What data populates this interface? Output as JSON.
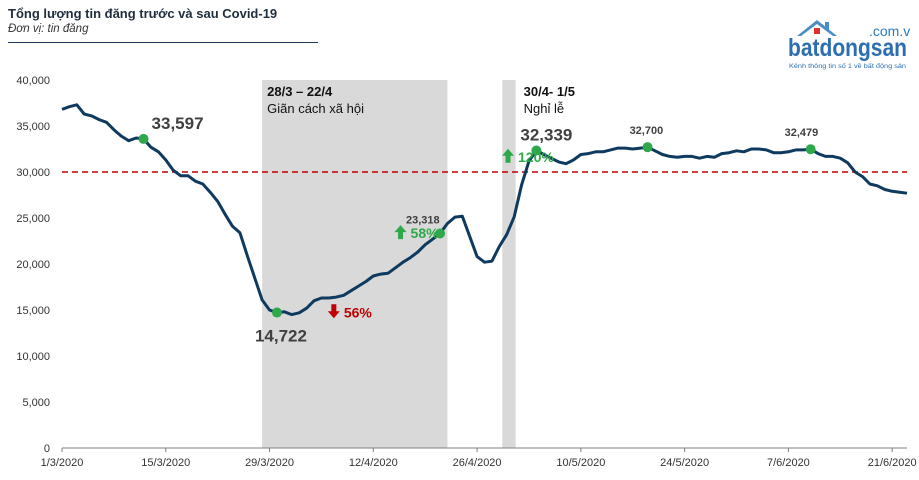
{
  "header": {
    "title": "Tổng lượng tin đăng trước và sau Covid-19",
    "subtitle": "Đơn vị: tin đăng"
  },
  "logo": {
    "brand": "batdongsan",
    "domain": ".com.vn",
    "tagline": "Kênh thông tin số 1 về bất động sản"
  },
  "colors": {
    "line": "#0e3a5f",
    "marker": "#2ea84a",
    "reference": "#c00000",
    "shade": "#d9d9d9",
    "up": "#2ea84a",
    "down": "#c00000"
  },
  "chart_data": {
    "type": "line",
    "title": "Tổng lượng tin đăng trước và sau Covid-19",
    "ylabel": "Đơn vị: tin đăng",
    "ylim": [
      0,
      40000
    ],
    "xlim": [
      0,
      114
    ],
    "y_ticks": [
      "0",
      "5,000",
      "10,000",
      "15,000",
      "20,000",
      "25,000",
      "30,000",
      "35,000",
      "40,000"
    ],
    "x_ticks": [
      {
        "day": 0,
        "label": "1/3/2020"
      },
      {
        "day": 14,
        "label": "15/3/2020"
      },
      {
        "day": 28,
        "label": "29/3/2020"
      },
      {
        "day": 42,
        "label": "12/4/2020"
      },
      {
        "day": 56,
        "label": "26/4/2020"
      },
      {
        "day": 70,
        "label": "10/5/2020"
      },
      {
        "day": 84,
        "label": "24/5/2020"
      },
      {
        "day": 98,
        "label": "7/6/2020"
      },
      {
        "day": 112,
        "label": "21/6/2020"
      }
    ],
    "reference_line": 30000,
    "series": [
      {
        "name": "Tổng lượng tin đăng",
        "x": [
          0,
          1,
          2,
          3,
          4,
          5,
          6,
          7,
          8,
          9,
          10,
          11,
          12,
          13,
          14,
          15,
          16,
          17,
          18,
          19,
          20,
          21,
          22,
          23,
          24,
          25,
          26,
          27,
          28,
          29,
          30,
          31,
          32,
          33,
          34,
          35,
          36,
          37,
          38,
          39,
          40,
          41,
          42,
          43,
          44,
          45,
          46,
          47,
          48,
          49,
          50,
          51,
          52,
          53,
          54,
          55,
          56,
          57,
          58,
          59,
          60,
          61,
          62,
          63,
          64,
          65,
          66,
          67,
          68,
          69,
          70,
          71,
          72,
          73,
          74,
          75,
          76,
          77,
          78,
          79,
          80,
          81,
          82,
          83,
          84,
          85,
          86,
          87,
          88,
          89,
          90,
          91,
          92,
          93,
          94,
          95,
          96,
          97,
          98,
          99,
          100,
          101,
          102,
          103,
          104,
          105,
          106,
          107,
          108,
          109,
          110,
          111,
          112,
          113,
          114
        ],
        "values": [
          36800,
          37100,
          37300,
          36300,
          36100,
          35700,
          35400,
          34600,
          33900,
          33400,
          33700,
          33597,
          32700,
          32200,
          31300,
          30200,
          29600,
          29600,
          29000,
          28700,
          27800,
          26800,
          25400,
          24100,
          23400,
          20900,
          18500,
          16100,
          15000,
          14722,
          14800,
          14500,
          14700,
          15200,
          16000,
          16300,
          16300,
          16400,
          16600,
          17100,
          17600,
          18100,
          18700,
          18900,
          19000,
          19600,
          20200,
          20700,
          21300,
          22100,
          22700,
          23318,
          24400,
          25100,
          25200,
          23000,
          20800,
          20200,
          20300,
          21900,
          23200,
          25100,
          28600,
          31200,
          32339,
          31900,
          31500,
          31100,
          30900,
          31300,
          31900,
          32000,
          32200,
          32200,
          32400,
          32600,
          32600,
          32500,
          32600,
          32700,
          32300,
          31900,
          31700,
          31600,
          31700,
          31700,
          31500,
          31700,
          31600,
          32000,
          32100,
          32300,
          32200,
          32500,
          32500,
          32400,
          32100,
          32100,
          32200,
          32400,
          32400,
          32479,
          32000,
          31700,
          31700,
          31500,
          31000,
          30000,
          29500,
          28700,
          28500,
          28100,
          27900,
          27800,
          27700
        ]
      }
    ],
    "markers": [
      {
        "day": 11,
        "value": 33597,
        "label": "33,597",
        "style": "big"
      },
      {
        "day": 29,
        "value": 14722,
        "label": "14,722",
        "style": "big"
      },
      {
        "day": 51,
        "value": 23318,
        "label": "23,318",
        "style": "small"
      },
      {
        "day": 64,
        "value": 32339,
        "label": "32,339",
        "style": "big"
      },
      {
        "day": 79,
        "value": 32700,
        "label": "32,700",
        "style": "small"
      },
      {
        "day": 101,
        "value": 32479,
        "label": "32,479",
        "style": "small"
      }
    ],
    "shaded_periods": [
      {
        "start": 27,
        "end": 52,
        "title": "28/3 – 22/4",
        "subtitle": "Giãn cách xã hội"
      },
      {
        "start": 59.4,
        "end": 61.2,
        "title": "30/4- 1/5",
        "subtitle": "Nghỉ lễ"
      }
    ],
    "changes": [
      {
        "label": "56%",
        "direction": "down",
        "near_day": 36,
        "near_value": 14100
      },
      {
        "label": "58%",
        "direction": "up",
        "near_day": 45,
        "near_value": 22700
      },
      {
        "label": "120%",
        "direction": "up",
        "near_day": 59.5,
        "near_value": 31000
      }
    ]
  }
}
